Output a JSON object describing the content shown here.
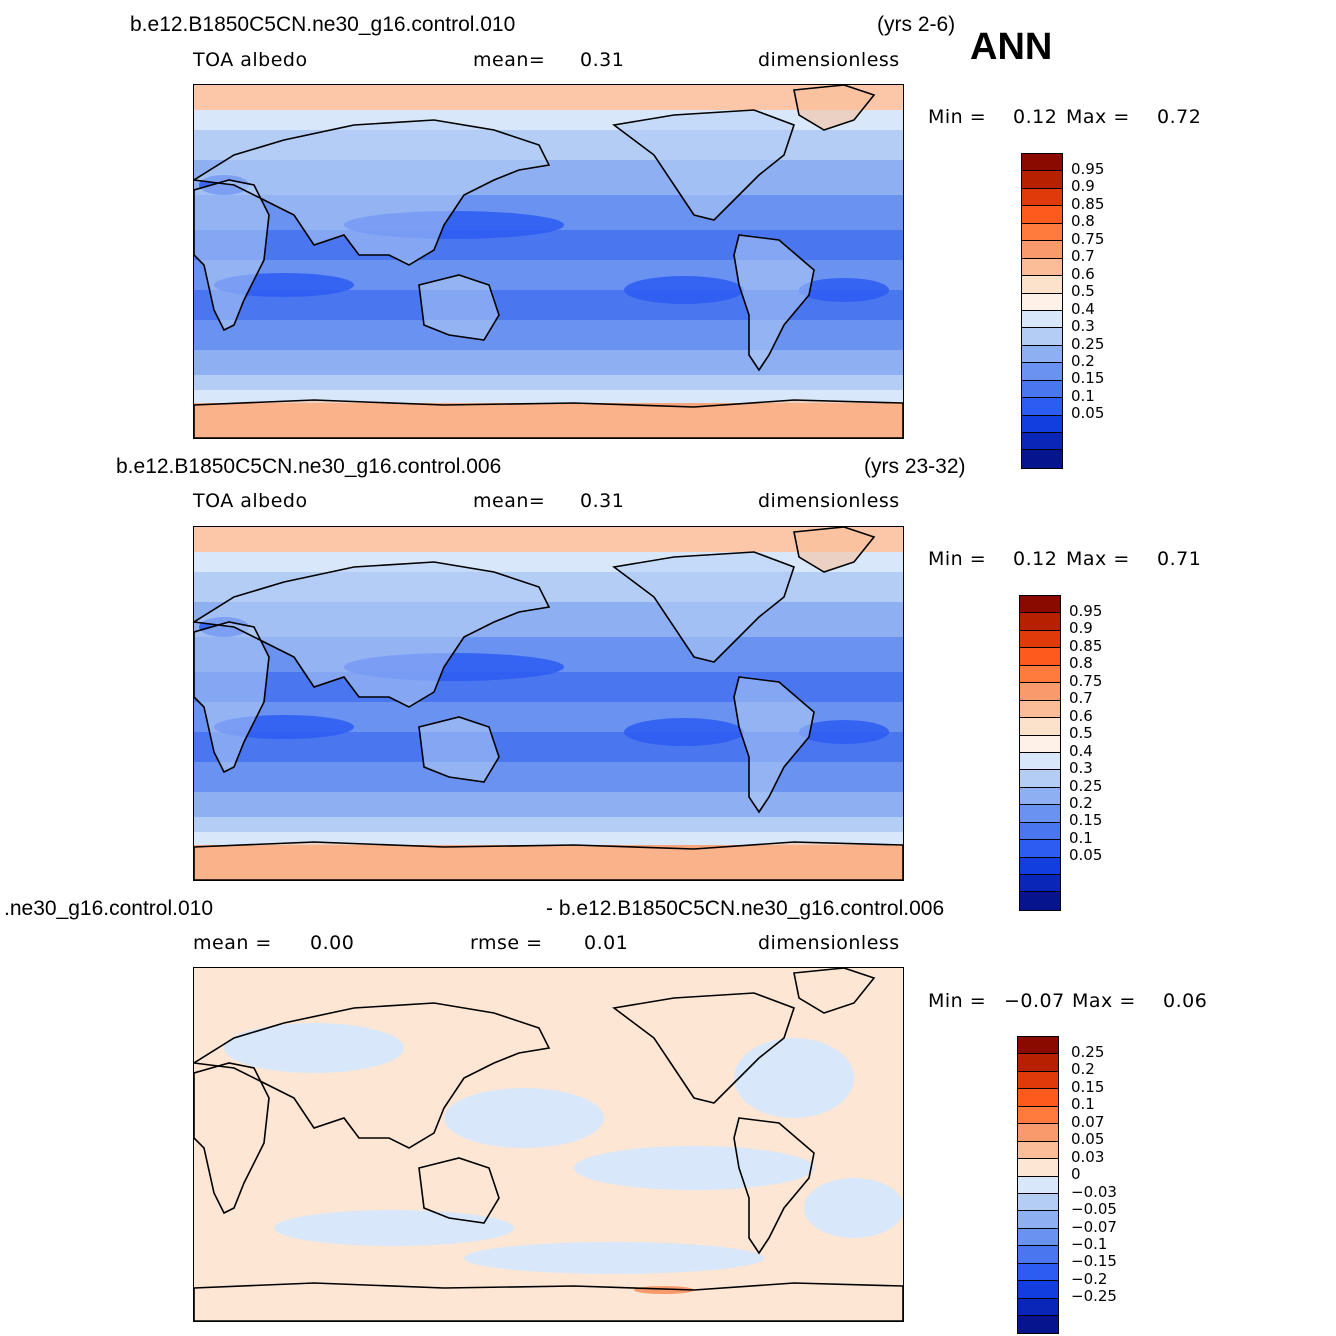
{
  "season": "ANN",
  "panels": [
    {
      "case": "b.e12.B1850C5CN.ne30_g16.control.010",
      "years": "(yrs 2-6)",
      "variable": "TOA  albedo",
      "stat1_label": "mean=",
      "stat1_value": "0.31",
      "stat2_label": "",
      "stat2_value": "",
      "units": "dimensionless",
      "min_label": "Min  =",
      "min_value": "0.12",
      "max_label": "Max  =",
      "max_value": "0.72"
    },
    {
      "case": "b.e12.B1850C5CN.ne30_g16.control.006",
      "years": "(yrs 23-32)",
      "variable": "TOA  albedo",
      "stat1_label": "mean=",
      "stat1_value": "0.31",
      "stat2_label": "",
      "stat2_value": "",
      "units": "dimensionless",
      "min_label": "Min  =",
      "min_value": "0.12",
      "max_label": "Max  =",
      "max_value": "0.71"
    },
    {
      "case": ".ne30_g16.control.010",
      "case_right": "- b.e12.B1850C5CN.ne30_g16.control.006",
      "variable": "",
      "stat1_label": "mean  =",
      "stat1_value": "0.00",
      "stat2_label": "rmse  =",
      "stat2_value": "0.01",
      "units": "dimensionless",
      "min_label": "Min  =",
      "min_value": "−0.07",
      "max_label": "Max  =",
      "max_value": "0.06"
    }
  ],
  "colorbars": {
    "absolute": {
      "labels": [
        "0.95",
        "0.9",
        "0.85",
        "0.8",
        "0.75",
        "0.7",
        "0.6",
        "0.5",
        "0.4",
        "0.3",
        "0.25",
        "0.2",
        "0.15",
        "0.1",
        "0.05"
      ],
      "colors": [
        "#8b0a00",
        "#b72000",
        "#e03a0a",
        "#ff5a1e",
        "#ff7a3c",
        "#f99a6c",
        "#fbbd98",
        "#fde2cb",
        "#fef2e8",
        "#d8e8fa",
        "#b4cdf5",
        "#8eb0f2",
        "#6a92f0",
        "#4a76f0",
        "#2c5cf2",
        "#123ee0",
        "#0a26b8",
        "#06148e"
      ]
    },
    "difference": {
      "labels": [
        "0.25",
        "0.2",
        "0.15",
        "0.1",
        "0.07",
        "0.05",
        "0.03",
        "0",
        "−0.03",
        "−0.05",
        "−0.07",
        "−0.1",
        "−0.15",
        "−0.2",
        "−0.25"
      ],
      "colors": [
        "#8b0a00",
        "#b72000",
        "#e03a0a",
        "#ff5a1e",
        "#ff7a3c",
        "#f99a6c",
        "#fbbd98",
        "#fde6d3",
        "#d8e8fa",
        "#b4cdf5",
        "#8eb0f2",
        "#6a92f0",
        "#4a76f0",
        "#2c5cf2",
        "#123ee0",
        "#0a26b8",
        "#06148e"
      ]
    }
  }
}
